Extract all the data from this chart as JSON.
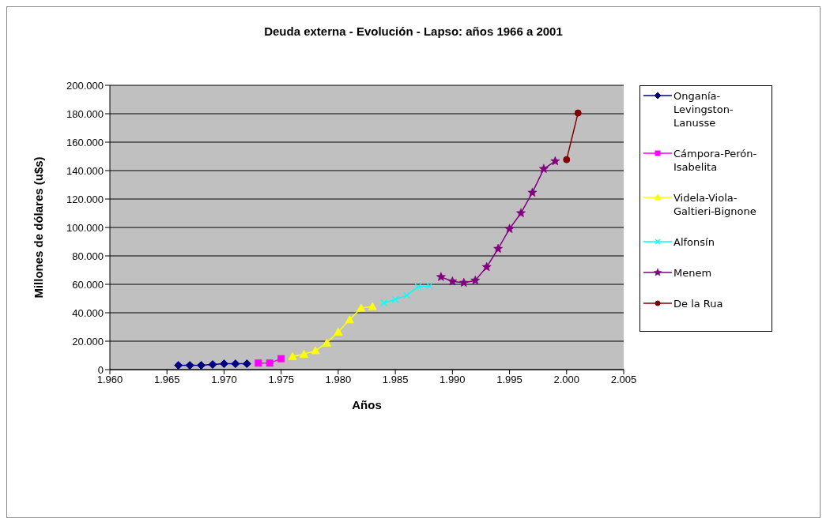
{
  "chart_data": {
    "type": "line",
    "title": "Deuda externa - Evolución - Lapso: años 1966 a 2001",
    "xlabel": "Años",
    "ylabel": "Millones de dólares (u$s)",
    "xlim": [
      1960,
      2005
    ],
    "xticks": [
      {
        "value": 1960,
        "label": "1.960"
      },
      {
        "value": 1965,
        "label": "1.965"
      },
      {
        "value": 1970,
        "label": "1.970"
      },
      {
        "value": 1975,
        "label": "1.975"
      },
      {
        "value": 1980,
        "label": "1.980"
      },
      {
        "value": 1985,
        "label": "1.985"
      },
      {
        "value": 1990,
        "label": "1.990"
      },
      {
        "value": 1995,
        "label": "1.995"
      },
      {
        "value": 2000,
        "label": "2.000"
      },
      {
        "value": 2005,
        "label": "2.005"
      }
    ],
    "ylim": [
      0,
      200000
    ],
    "yticks": [
      0,
      {
        "value": 20000,
        "label": "20.000"
      },
      {
        "value": 40000,
        "label": "40.000"
      },
      {
        "value": 60000,
        "label": "60.000"
      },
      {
        "value": 80000,
        "label": "80.000"
      },
      {
        "value": 100000,
        "label": "100.000"
      },
      {
        "value": 120000,
        "label": "120.000"
      },
      {
        "value": 140000,
        "label": "140.000"
      },
      {
        "value": 160000,
        "label": "160.000"
      },
      {
        "value": 180000,
        "label": "180.000"
      },
      {
        "value": 200000,
        "label": "200.000"
      }
    ],
    "grid": "y",
    "legend": "right",
    "line_style": "solid",
    "series": [
      {
        "name": "Onganía-Levingston-Lanusse",
        "color": "#000080",
        "marker": "diamond",
        "x": [
          1966,
          1967,
          1968,
          1969,
          1970,
          1971,
          1972
        ],
        "values": [
          3000,
          3000,
          3000,
          3600,
          4100,
          4100,
          4100
        ]
      },
      {
        "name": "Cámpora-Perón-Isabelita",
        "color": "#ff00ff",
        "marker": "square",
        "x": [
          1973,
          1974,
          1975
        ],
        "values": [
          4600,
          4600,
          7700
        ]
      },
      {
        "name": "Videla-Viola-Galtieri-Bignone",
        "color": "#ffff00",
        "marker": "triangle",
        "x": [
          1976,
          1977,
          1978,
          1979,
          1980,
          1981,
          1982,
          1983
        ],
        "values": [
          9300,
          10800,
          13400,
          18800,
          26500,
          35100,
          43300,
          44400
        ]
      },
      {
        "name": "Alfonsín",
        "color": "#00ffff",
        "marker": "cross",
        "x": [
          1984,
          1985,
          1986,
          1987,
          1988
        ],
        "values": [
          47000,
          49300,
          52300,
          58300,
          58800
        ]
      },
      {
        "name": "Menem",
        "color": "#800080",
        "marker": "star",
        "x": [
          1989,
          1990,
          1991,
          1992,
          1993,
          1994,
          1995,
          1996,
          1997,
          1998,
          1999
        ],
        "values": [
          65200,
          62100,
          61100,
          62700,
          72200,
          85000,
          99000,
          110100,
          124500,
          141200,
          146600
        ]
      },
      {
        "name": "De la Rua",
        "color": "#800000",
        "marker": "circle",
        "x": [
          2000,
          2001
        ],
        "values": [
          147700,
          180500
        ]
      }
    ]
  }
}
